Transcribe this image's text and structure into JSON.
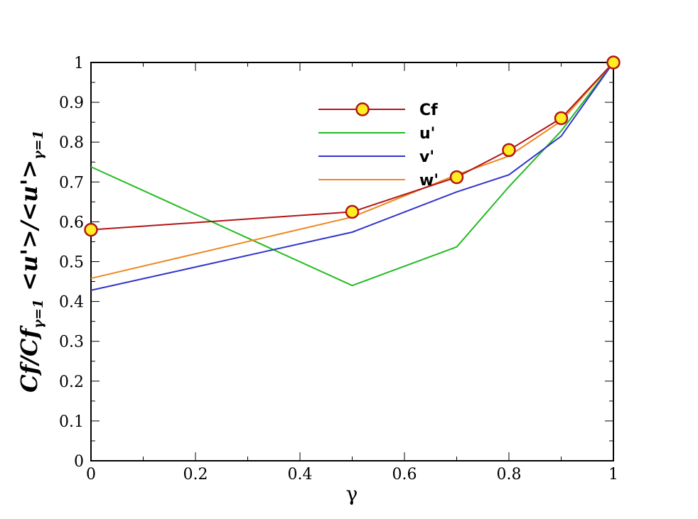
{
  "chart_data": {
    "type": "line",
    "xlabel": "γ",
    "ylabel": {
      "part1_main": "Cf/Cf",
      "part1_sub": "γ=1",
      "part2_main": "<u'>/<u'>",
      "part2_sub": "γ=1"
    },
    "xlim": [
      0,
      1
    ],
    "ylim": [
      0,
      1
    ],
    "x_ticks": [
      "0",
      "0.2",
      "0.4",
      "0.6",
      "0.8",
      "1"
    ],
    "y_ticks": [
      "0",
      "0.1",
      "0.2",
      "0.3",
      "0.4",
      "0.5",
      "0.6",
      "0.7",
      "0.8",
      "0.9",
      "1"
    ],
    "grid": false,
    "legend_position": "top-center",
    "series": [
      {
        "name": "Cf",
        "color": "#b31515",
        "marker": "circle",
        "marker_fill": "#ffee22",
        "x": [
          0,
          0.5,
          0.7,
          0.8,
          0.9,
          1.0
        ],
        "y": [
          0.58,
          0.625,
          0.712,
          0.78,
          0.86,
          1.0
        ]
      },
      {
        "name": "u'",
        "color": "#22bb22",
        "marker": "none",
        "x": [
          0,
          0.5,
          0.7,
          0.8,
          0.9,
          1.0
        ],
        "y": [
          0.738,
          0.44,
          0.537,
          0.688,
          0.828,
          1.0
        ]
      },
      {
        "name": "v'",
        "color": "#3333cc",
        "marker": "none",
        "x": [
          0,
          0.5,
          0.7,
          0.8,
          0.9,
          1.0
        ],
        "y": [
          0.428,
          0.574,
          0.675,
          0.718,
          0.815,
          1.0
        ]
      },
      {
        "name": "w'",
        "color": "#ee8822",
        "marker": "none",
        "x": [
          0,
          0.5,
          0.7,
          0.8,
          0.9,
          1.0
        ],
        "y": [
          0.458,
          0.612,
          0.718,
          0.765,
          0.853,
          1.0
        ]
      }
    ]
  }
}
